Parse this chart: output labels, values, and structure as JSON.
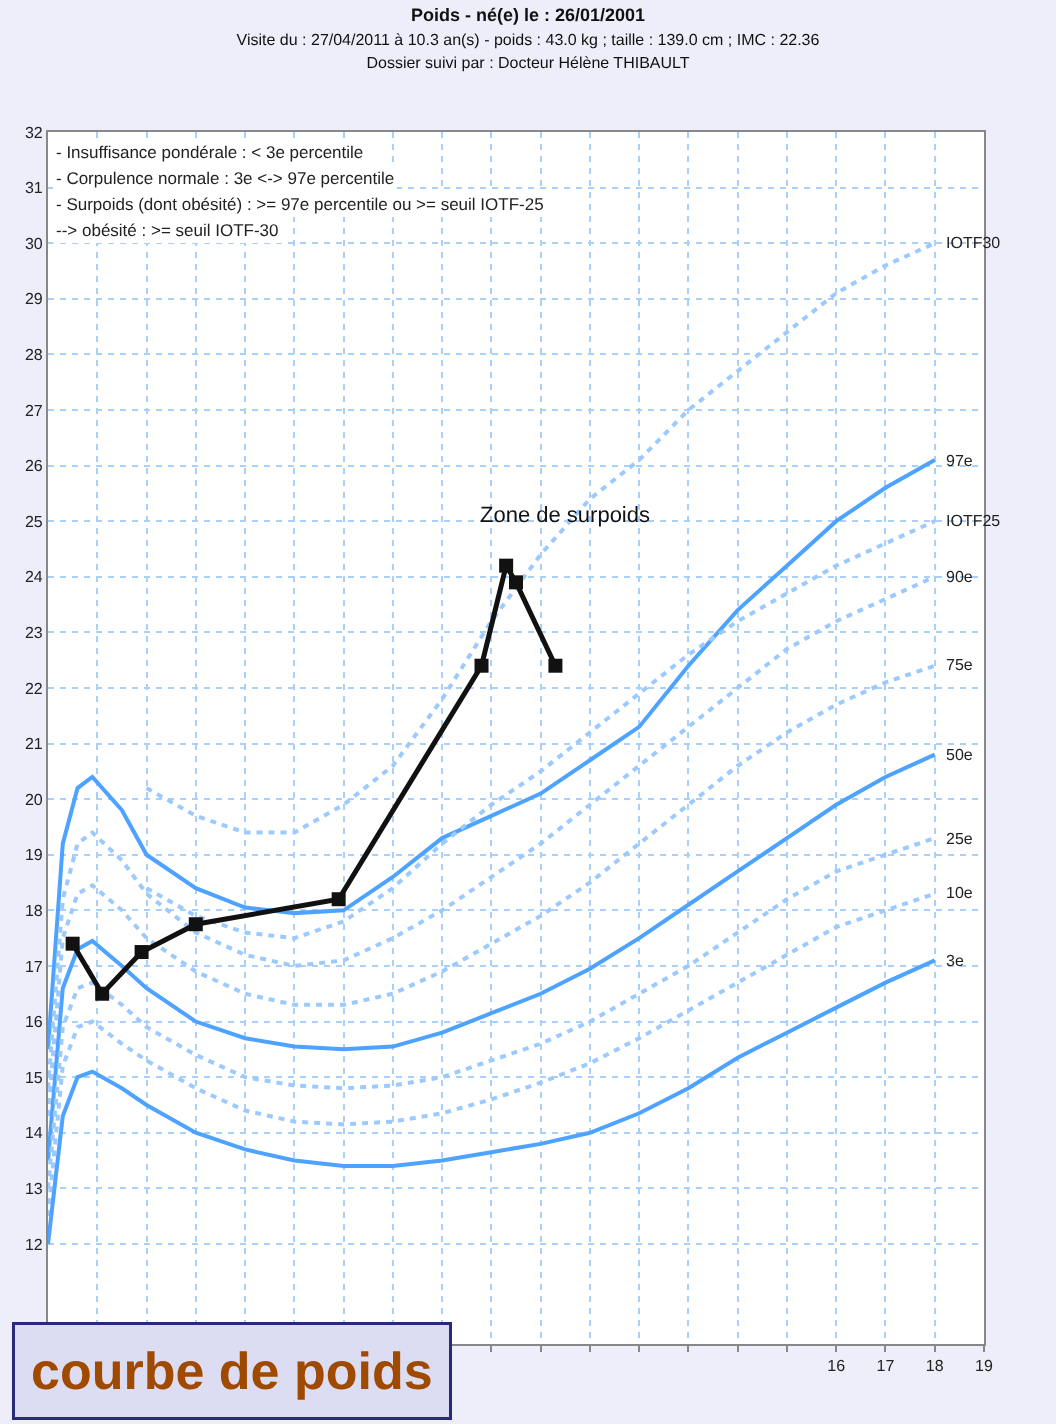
{
  "chart_data": {
    "type": "line",
    "title": "Poids - né(e) le : 26/01/2001",
    "subtitle": "Visite du : 27/04/2011 à 10.3 an(s) - poids : 43.0 kg ; taille : 139.0 cm ; IMC : 22.36\nDossier suivi par : Docteur Hélène THIBAULT",
    "annotations": [
      "- Insuffisance pondérale : < 3e percentile",
      "- Corpulence normale : 3e <-> 97e percentile",
      "- Surpoids (dont obésité) : >= 97e percentile ou >= seuil IOTF-25",
      "--> obésité : >= seuil IOTF-30",
      {
        "text": "Zone de surpoids",
        "x": 10.5,
        "y": 25.1
      },
      "courbe de poids"
    ],
    "xlim": [
      0,
      19
    ],
    "xticks": [
      {
        "value": 0,
        "label": null
      },
      {
        "value": 1,
        "label": null
      },
      {
        "value": 2,
        "label": null
      },
      {
        "value": 3,
        "label": null
      },
      {
        "value": 4,
        "label": null
      },
      {
        "value": 5,
        "label": null
      },
      {
        "value": 6,
        "label": null
      },
      {
        "value": 7,
        "label": null
      },
      {
        "value": 8,
        "label": null
      },
      {
        "value": 9,
        "label": null
      },
      {
        "value": 10,
        "label": null
      },
      {
        "value": 11,
        "label": null
      },
      {
        "value": 12,
        "label": null
      },
      {
        "value": 13,
        "label": null
      },
      {
        "value": 14,
        "label": null
      },
      {
        "value": 15,
        "label": null
      },
      16,
      17,
      18,
      19
    ],
    "ylim": [
      10.2,
      32
    ],
    "yticks": [
      12,
      13,
      14,
      15,
      16,
      17,
      18,
      19,
      20,
      21,
      22,
      23,
      24,
      25,
      26,
      27,
      28,
      29,
      30,
      31,
      32
    ],
    "grid": true,
    "series": [
      {
        "name": "IOTF30",
        "color": "#9ccaff",
        "line_style": "dotted",
        "marker": "none",
        "x": [
          2,
          3,
          4,
          5,
          6,
          7,
          8,
          9,
          10,
          11,
          12,
          13,
          14,
          15,
          16,
          17,
          18
        ],
        "values": [
          20.2,
          19.7,
          19.4,
          19.4,
          19.9,
          20.6,
          21.8,
          23.2,
          24.4,
          25.4,
          26.1,
          27.0,
          27.7,
          28.4,
          29.1,
          29.6,
          30.0
        ]
      },
      {
        "name": "97e",
        "color": "#4da3ff",
        "line_style": "solid",
        "marker": "none",
        "x": [
          0,
          0.3,
          0.6,
          0.9,
          1.5,
          2,
          3,
          4,
          5,
          6,
          7,
          8,
          9,
          10,
          11,
          12,
          13,
          14,
          15,
          16,
          17,
          18
        ],
        "values": [
          15.5,
          19.2,
          20.2,
          20.4,
          19.8,
          19.0,
          18.4,
          18.05,
          17.95,
          18.0,
          18.6,
          19.3,
          19.7,
          20.1,
          20.7,
          21.3,
          22.4,
          23.4,
          24.2,
          25.0,
          25.6,
          26.1
        ]
      },
      {
        "name": "IOTF25",
        "color": "#9ccaff",
        "line_style": "dotted",
        "marker": "none",
        "x": [
          2,
          3,
          4,
          5,
          6,
          7,
          8,
          9,
          10,
          11,
          12,
          13,
          14,
          15,
          16,
          17,
          18
        ],
        "values": [
          18.4,
          17.9,
          17.6,
          17.5,
          17.8,
          18.4,
          19.2,
          19.9,
          20.5,
          21.2,
          21.9,
          22.6,
          23.2,
          23.7,
          24.2,
          24.6,
          25.0
        ]
      },
      {
        "name": "90e",
        "color": "#9ccaff",
        "line_style": "dotted",
        "marker": "none",
        "x": [
          0,
          0.3,
          0.6,
          0.9,
          1.5,
          2,
          3,
          4,
          5,
          6,
          7,
          8,
          9,
          10,
          11,
          12,
          13,
          14,
          15,
          16,
          17,
          18
        ],
        "values": [
          14.8,
          18.2,
          19.2,
          19.4,
          18.9,
          18.3,
          17.6,
          17.2,
          17.0,
          17.1,
          17.5,
          18.0,
          18.6,
          19.2,
          19.9,
          20.6,
          21.3,
          22.0,
          22.7,
          23.2,
          23.6,
          24.0
        ]
      },
      {
        "name": "75e",
        "color": "#9ccaff",
        "line_style": "dotted",
        "marker": "none",
        "x": [
          0,
          0.3,
          0.6,
          0.9,
          1.5,
          2,
          3,
          4,
          5,
          6,
          7,
          8,
          9,
          10,
          11,
          12,
          13,
          14,
          15,
          16,
          17,
          18
        ],
        "values": [
          14.3,
          17.5,
          18.3,
          18.45,
          18.0,
          17.5,
          16.9,
          16.5,
          16.3,
          16.3,
          16.5,
          16.9,
          17.4,
          17.9,
          18.5,
          19.2,
          19.9,
          20.6,
          21.2,
          21.7,
          22.1,
          22.4
        ]
      },
      {
        "name": "50e",
        "color": "#4da3ff",
        "line_style": "solid",
        "marker": "none",
        "x": [
          0,
          0.3,
          0.6,
          0.9,
          1.5,
          2,
          3,
          4,
          5,
          6,
          7,
          8,
          9,
          10,
          11,
          12,
          13,
          14,
          15,
          16,
          17,
          18
        ],
        "values": [
          13.5,
          16.6,
          17.3,
          17.45,
          17.0,
          16.6,
          16.0,
          15.7,
          15.55,
          15.5,
          15.55,
          15.8,
          16.15,
          16.5,
          16.95,
          17.5,
          18.1,
          18.7,
          19.3,
          19.9,
          20.4,
          20.8
        ]
      },
      {
        "name": "25e",
        "color": "#9ccaff",
        "line_style": "dotted",
        "marker": "none",
        "x": [
          0,
          0.3,
          0.6,
          0.9,
          1.5,
          2,
          3,
          4,
          5,
          6,
          7,
          8,
          9,
          10,
          11,
          12,
          13,
          14,
          15,
          16,
          17,
          18
        ],
        "values": [
          13.0,
          15.9,
          16.6,
          16.7,
          16.3,
          15.9,
          15.4,
          15.0,
          14.85,
          14.8,
          14.85,
          15.0,
          15.3,
          15.6,
          16.0,
          16.5,
          17.0,
          17.6,
          18.2,
          18.7,
          19.0,
          19.3
        ]
      },
      {
        "name": "10e",
        "color": "#9ccaff",
        "line_style": "dotted",
        "marker": "none",
        "x": [
          0,
          0.3,
          0.6,
          0.9,
          1.5,
          2,
          3,
          4,
          5,
          6,
          7,
          8,
          9,
          10,
          11,
          12,
          13,
          14,
          15,
          16,
          17,
          18
        ],
        "values": [
          12.5,
          15.2,
          15.9,
          16.0,
          15.6,
          15.3,
          14.8,
          14.4,
          14.2,
          14.15,
          14.2,
          14.35,
          14.6,
          14.9,
          15.25,
          15.7,
          16.2,
          16.7,
          17.2,
          17.7,
          18.0,
          18.3
        ]
      },
      {
        "name": "3e",
        "color": "#4da3ff",
        "line_style": "solid",
        "marker": "none",
        "x": [
          0,
          0.3,
          0.6,
          0.9,
          1.5,
          2,
          3,
          4,
          5,
          6,
          7,
          8,
          9,
          10,
          11,
          12,
          13,
          14,
          15,
          16,
          17,
          18
        ],
        "values": [
          12.0,
          14.3,
          15.0,
          15.1,
          14.8,
          14.5,
          14.0,
          13.7,
          13.5,
          13.4,
          13.4,
          13.5,
          13.65,
          13.8,
          14.0,
          14.35,
          14.8,
          15.35,
          15.8,
          16.25,
          16.7,
          17.1
        ]
      },
      {
        "color": "#111111",
        "line_style": "solid",
        "marker": "square",
        "x": [
          0.5,
          1.1,
          1.9,
          3.0,
          5.9,
          8.8,
          9.3,
          9.5,
          10.3
        ],
        "values": [
          17.4,
          16.5,
          17.25,
          17.75,
          18.2,
          22.4,
          24.2,
          23.9,
          22.4
        ]
      }
    ]
  }
}
